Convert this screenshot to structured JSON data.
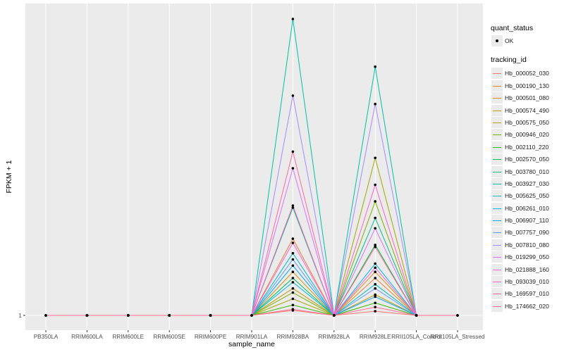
{
  "chart_data": {
    "type": "line",
    "xlabel": "sample_name",
    "ylabel": "FPKM + 1",
    "y_tick_labels": [
      "1"
    ],
    "ylim": [
      0.95,
      8.5
    ],
    "categories": [
      "PB350LA",
      "RRIM600LA",
      "RRIM600LE",
      "RRIM600SE",
      "RRIM600PE",
      "RRIM901LA",
      "RRIM928BA",
      "RRIM928LA",
      "RRIM928LE",
      "RRII105LA_Control",
      "RRII105LA_Stressed"
    ],
    "legend_status": {
      "title": "quant_status",
      "items": [
        "OK"
      ]
    },
    "legend_tracking": {
      "title": "tracking_id"
    },
    "grid": true,
    "series": [
      {
        "name": "Hb_000052_030",
        "color": "#F8766D",
        "values": [
          1,
          1,
          1,
          1,
          1,
          1,
          1.12,
          1,
          1.1,
          1,
          1
        ]
      },
      {
        "name": "Hb_000190_130",
        "color": "#EA8331",
        "values": [
          1,
          1,
          1,
          1,
          1,
          1,
          2.85,
          1,
          1.9,
          1,
          1
        ]
      },
      {
        "name": "Hb_000501_080",
        "color": "#D89000",
        "values": [
          1,
          1,
          1,
          1,
          1,
          1,
          2.05,
          1,
          2.05,
          1,
          1
        ]
      },
      {
        "name": "Hb_000574_490",
        "color": "#C09B00",
        "values": [
          1,
          1,
          1,
          1,
          1,
          1,
          1.65,
          1,
          1.5,
          1,
          1
        ]
      },
      {
        "name": "Hb_000575_050",
        "color": "#A3A500",
        "values": [
          1,
          1,
          1,
          1,
          1,
          1,
          1.4,
          1,
          4.8,
          1,
          1
        ]
      },
      {
        "name": "Hb_000946_020",
        "color": "#7CAE00",
        "values": [
          1,
          1,
          1,
          1,
          1,
          1,
          1.55,
          1,
          3.75,
          1,
          1
        ]
      },
      {
        "name": "Hb_002110_220",
        "color": "#39B600",
        "values": [
          1,
          1,
          1,
          1,
          1,
          1,
          1.25,
          1,
          1.3,
          1,
          1
        ]
      },
      {
        "name": "Hb_002570_050",
        "color": "#00BB4E",
        "values": [
          1,
          1,
          1,
          1,
          1,
          1,
          1.9,
          1,
          2.7,
          1,
          1
        ]
      },
      {
        "name": "Hb_003780_010",
        "color": "#00BF7D",
        "values": [
          1,
          1,
          1,
          1,
          1,
          1,
          3.6,
          1,
          3.35,
          1,
          1
        ]
      },
      {
        "name": "Hb_003927_030",
        "color": "#00C1A3",
        "values": [
          1,
          1,
          1,
          1,
          1,
          1,
          8.15,
          1,
          7.0,
          1,
          1
        ]
      },
      {
        "name": "Hb_005625_050",
        "color": "#00BFC4",
        "values": [
          1,
          1,
          1,
          1,
          1,
          1,
          2.5,
          1,
          1.75,
          1,
          1
        ]
      },
      {
        "name": "Hb_006261_010",
        "color": "#00B8E5",
        "values": [
          1,
          1,
          1,
          1,
          1,
          1,
          1.8,
          1,
          2.25,
          1,
          1
        ]
      },
      {
        "name": "Hb_006907_110",
        "color": "#00A9FF",
        "values": [
          1,
          1,
          1,
          1,
          1,
          1,
          2.2,
          1,
          1.45,
          1,
          1
        ]
      },
      {
        "name": "Hb_007757_090",
        "color": "#619CFF",
        "values": [
          1,
          1,
          1,
          1,
          1,
          1,
          2.35,
          1,
          1.65,
          1,
          1
        ]
      },
      {
        "name": "Hb_007810_080",
        "color": "#A58AFF",
        "values": [
          1,
          1,
          1,
          1,
          1,
          1,
          6.3,
          1,
          6.1,
          1,
          1
        ]
      },
      {
        "name": "Hb_019299_050",
        "color": "#DB72FB",
        "values": [
          1,
          1,
          1,
          1,
          1,
          1,
          4.55,
          1,
          3.1,
          1,
          1
        ]
      },
      {
        "name": "Hb_021888_160",
        "color": "#F564E3",
        "values": [
          1,
          1,
          1,
          1,
          1,
          1,
          2.75,
          1,
          2.15,
          1,
          1
        ]
      },
      {
        "name": "Hb_093039_010",
        "color": "#FF61C3",
        "values": [
          1,
          1,
          1,
          1,
          1,
          1,
          3.65,
          1,
          4.15,
          1,
          1
        ]
      },
      {
        "name": "Hb_169597_010",
        "color": "#FF67A4",
        "values": [
          1,
          1,
          1,
          1,
          1,
          1,
          4.95,
          1,
          2.65,
          1,
          1
        ]
      },
      {
        "name": "Hb_174662_020",
        "color": "#FF6C91",
        "values": [
          1,
          1,
          1,
          1,
          1,
          1,
          1.15,
          1,
          1.2,
          1,
          1
        ]
      }
    ]
  }
}
